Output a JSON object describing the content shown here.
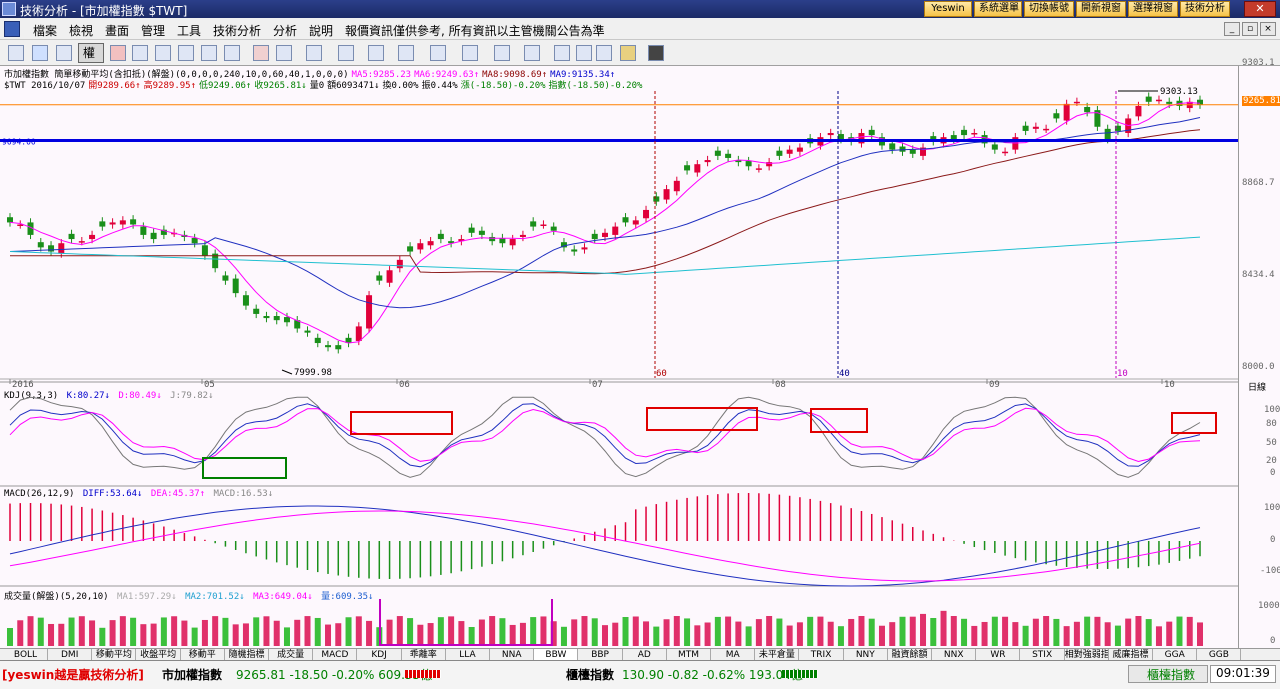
{
  "window": {
    "title": "技術分析 - [市加權指數 $TWT]",
    "top_buttons": [
      "Yeswin",
      "系統選單",
      "切換帳號",
      "開新視窗",
      "選擇視窗",
      "技術分析"
    ],
    "close": "✕"
  },
  "menu": {
    "items": [
      "檔案",
      "檢視",
      "畫面",
      "管理",
      "工具",
      "技術分析",
      "分析",
      "說明"
    ],
    "notice": "報價資訊僅供參考, 所有資訊以主管機關公告為準"
  },
  "toolbar": {
    "period_label": "權"
  },
  "price_panel": {
    "legend1": "市加權指數 簡單移動平均(含扣抵)(解盤)(0,0,0,0,240,10,0,60,40,1,0,0,0)",
    "ma_items": [
      {
        "label": "MA5:9285.23",
        "color": "#ff00ff"
      },
      {
        "label": "MA6:9249.63↑",
        "color": "#ff00ff"
      },
      {
        "label": "MA8:9098.69↑",
        "color": "#8b0000"
      },
      {
        "label": "MA9:9135.34↑",
        "color": "#0000cc"
      }
    ],
    "legend2": "$TWT 2016/10/07",
    "quote_items": [
      {
        "label": "開9289.66↑",
        "color": "#cc0000"
      },
      {
        "label": "高9289.95↑",
        "color": "#cc0000"
      },
      {
        "label": "低9249.06↑",
        "color": "#008000"
      },
      {
        "label": "收9265.81↓",
        "color": "#008000"
      },
      {
        "label": "量0",
        "color": "#000000"
      },
      {
        "label": "額6093471↓",
        "color": "#000000"
      },
      {
        "label": "換0.00%",
        "color": "#000000"
      },
      {
        "label": "振0.44%",
        "color": "#000000"
      },
      {
        "label": "漲(-18.50)-0.20%",
        "color": "#008000"
      },
      {
        "label": "指數(-18.50)-0.20%",
        "color": "#008000"
      }
    ],
    "ylabels": [
      "9303.1",
      "8868.7",
      "8434.4",
      "8000.0"
    ],
    "current_price": "9265.81",
    "hline_price": "9094.00",
    "high_label": "9303.13",
    "low_label": "7999.98",
    "marker_60": "60",
    "marker_40": "40",
    "marker_10": "10",
    "months": [
      "2016",
      "05",
      "06",
      "07",
      "08",
      "09",
      "10"
    ],
    "axis_unit": "日線"
  },
  "kdj_panel": {
    "legend": "KDJ(9,3,3)",
    "k": "K:80.27↓",
    "d": "D:80.49↓",
    "j": "J:79.82↓",
    "ylabels": [
      "100",
      "80",
      "50",
      "20",
      "0"
    ]
  },
  "macd_panel": {
    "legend": "MACD(26,12,9)",
    "diff": "DIFF:53.64↓",
    "dea": "DEA:45.37↑",
    "macd": "MACD:16.53↓",
    "ylabels": [
      "100",
      "0",
      "-100"
    ]
  },
  "volume_panel": {
    "legend": "成交量(解盤)(5,20,10)",
    "ma1": "MA1:597.29↓",
    "ma2": "MA2:701.52↓",
    "ma3": "MA3:649.04↓",
    "vol": "量:609.35↓",
    "ylabels": [
      "1000",
      "0"
    ]
  },
  "tabs": [
    "BOLL",
    "DMI",
    "移動平均",
    "收盤平均",
    "移動平",
    "隨機指標",
    "成交量",
    "MACD",
    "KDJ",
    "乖離率",
    "LLA",
    "NNA",
    "BBW",
    "BBP",
    "AD",
    "MTM",
    "MA",
    "未平倉量",
    "TRIX",
    "NNY",
    "融資餘額",
    "NNX",
    "WR",
    "STIX",
    "相對強弱指",
    "威廉指標",
    "GGA",
    "GGB"
  ],
  "status": {
    "slogan": "[yeswin越是贏技術分析]",
    "idx1_name": "市加權指數",
    "idx1_vals": "9265.81 -18.50 -0.20% 609.35億",
    "idx2_name": "櫃檯指數",
    "idx2_vals": "130.90 -0.82 -0.62% 193.04億",
    "right_label": "櫃檯指數",
    "time": "09:01:39"
  },
  "colors": {
    "up": "#e0003a",
    "down": "#1a8f1a",
    "ma_magenta": "#ff00ff",
    "ma_blue": "#2030c0",
    "ma_brown": "#8b1a1a",
    "ma_cyan": "#20c0d0",
    "hline_blue": "#0000e0",
    "price_orange": "#ff8000",
    "box_red": "#e00000",
    "box_green": "#008000"
  }
}
